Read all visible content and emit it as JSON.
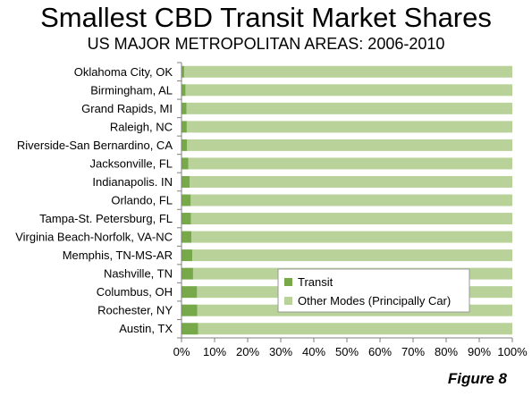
{
  "chart_data": {
    "type": "bar",
    "orientation": "horizontal",
    "stacked": "percent",
    "title": "Smallest CBD Transit Market Shares",
    "subtitle": "US MAJOR METROPOLITAN AREAS: 2006-2010",
    "categories": [
      "Oklahoma City, OK",
      "Birmingham, AL",
      "Grand Rapids, MI",
      "Raleigh, NC",
      "Riverside-San Bernardino, CA",
      "Jacksonville, FL",
      "Indianapolis. IN",
      "Orlando, FL",
      "Tampa-St. Petersburg, FL",
      "Virginia Beach-Norfolk, VA-NC",
      "Memphis, TN-MS-AR",
      "Nashville, TN",
      "Columbus, OH",
      "Rochester, NY",
      "Austin, TX"
    ],
    "series": [
      {
        "name": "Transit",
        "color": "#77a94a",
        "values": [
          0.8,
          1.2,
          1.5,
          1.6,
          1.7,
          2.1,
          2.5,
          2.8,
          2.9,
          3.0,
          3.3,
          3.5,
          4.7,
          4.8,
          5.0
        ]
      },
      {
        "name": "Other Modes (Principally Car)",
        "color": "#b9d29a",
        "values": [
          99.2,
          98.8,
          98.5,
          98.4,
          98.3,
          97.9,
          97.5,
          97.2,
          97.1,
          97.0,
          96.7,
          96.5,
          95.3,
          95.2,
          95.0
        ]
      }
    ],
    "xlim": [
      0,
      100
    ],
    "xticks": [
      "0%",
      "10%",
      "20%",
      "30%",
      "40%",
      "50%",
      "60%",
      "70%",
      "80%",
      "90%",
      "100%"
    ],
    "grid": false,
    "legend_position": "bottom-right inside plot"
  },
  "figure_label": "Figure 8"
}
